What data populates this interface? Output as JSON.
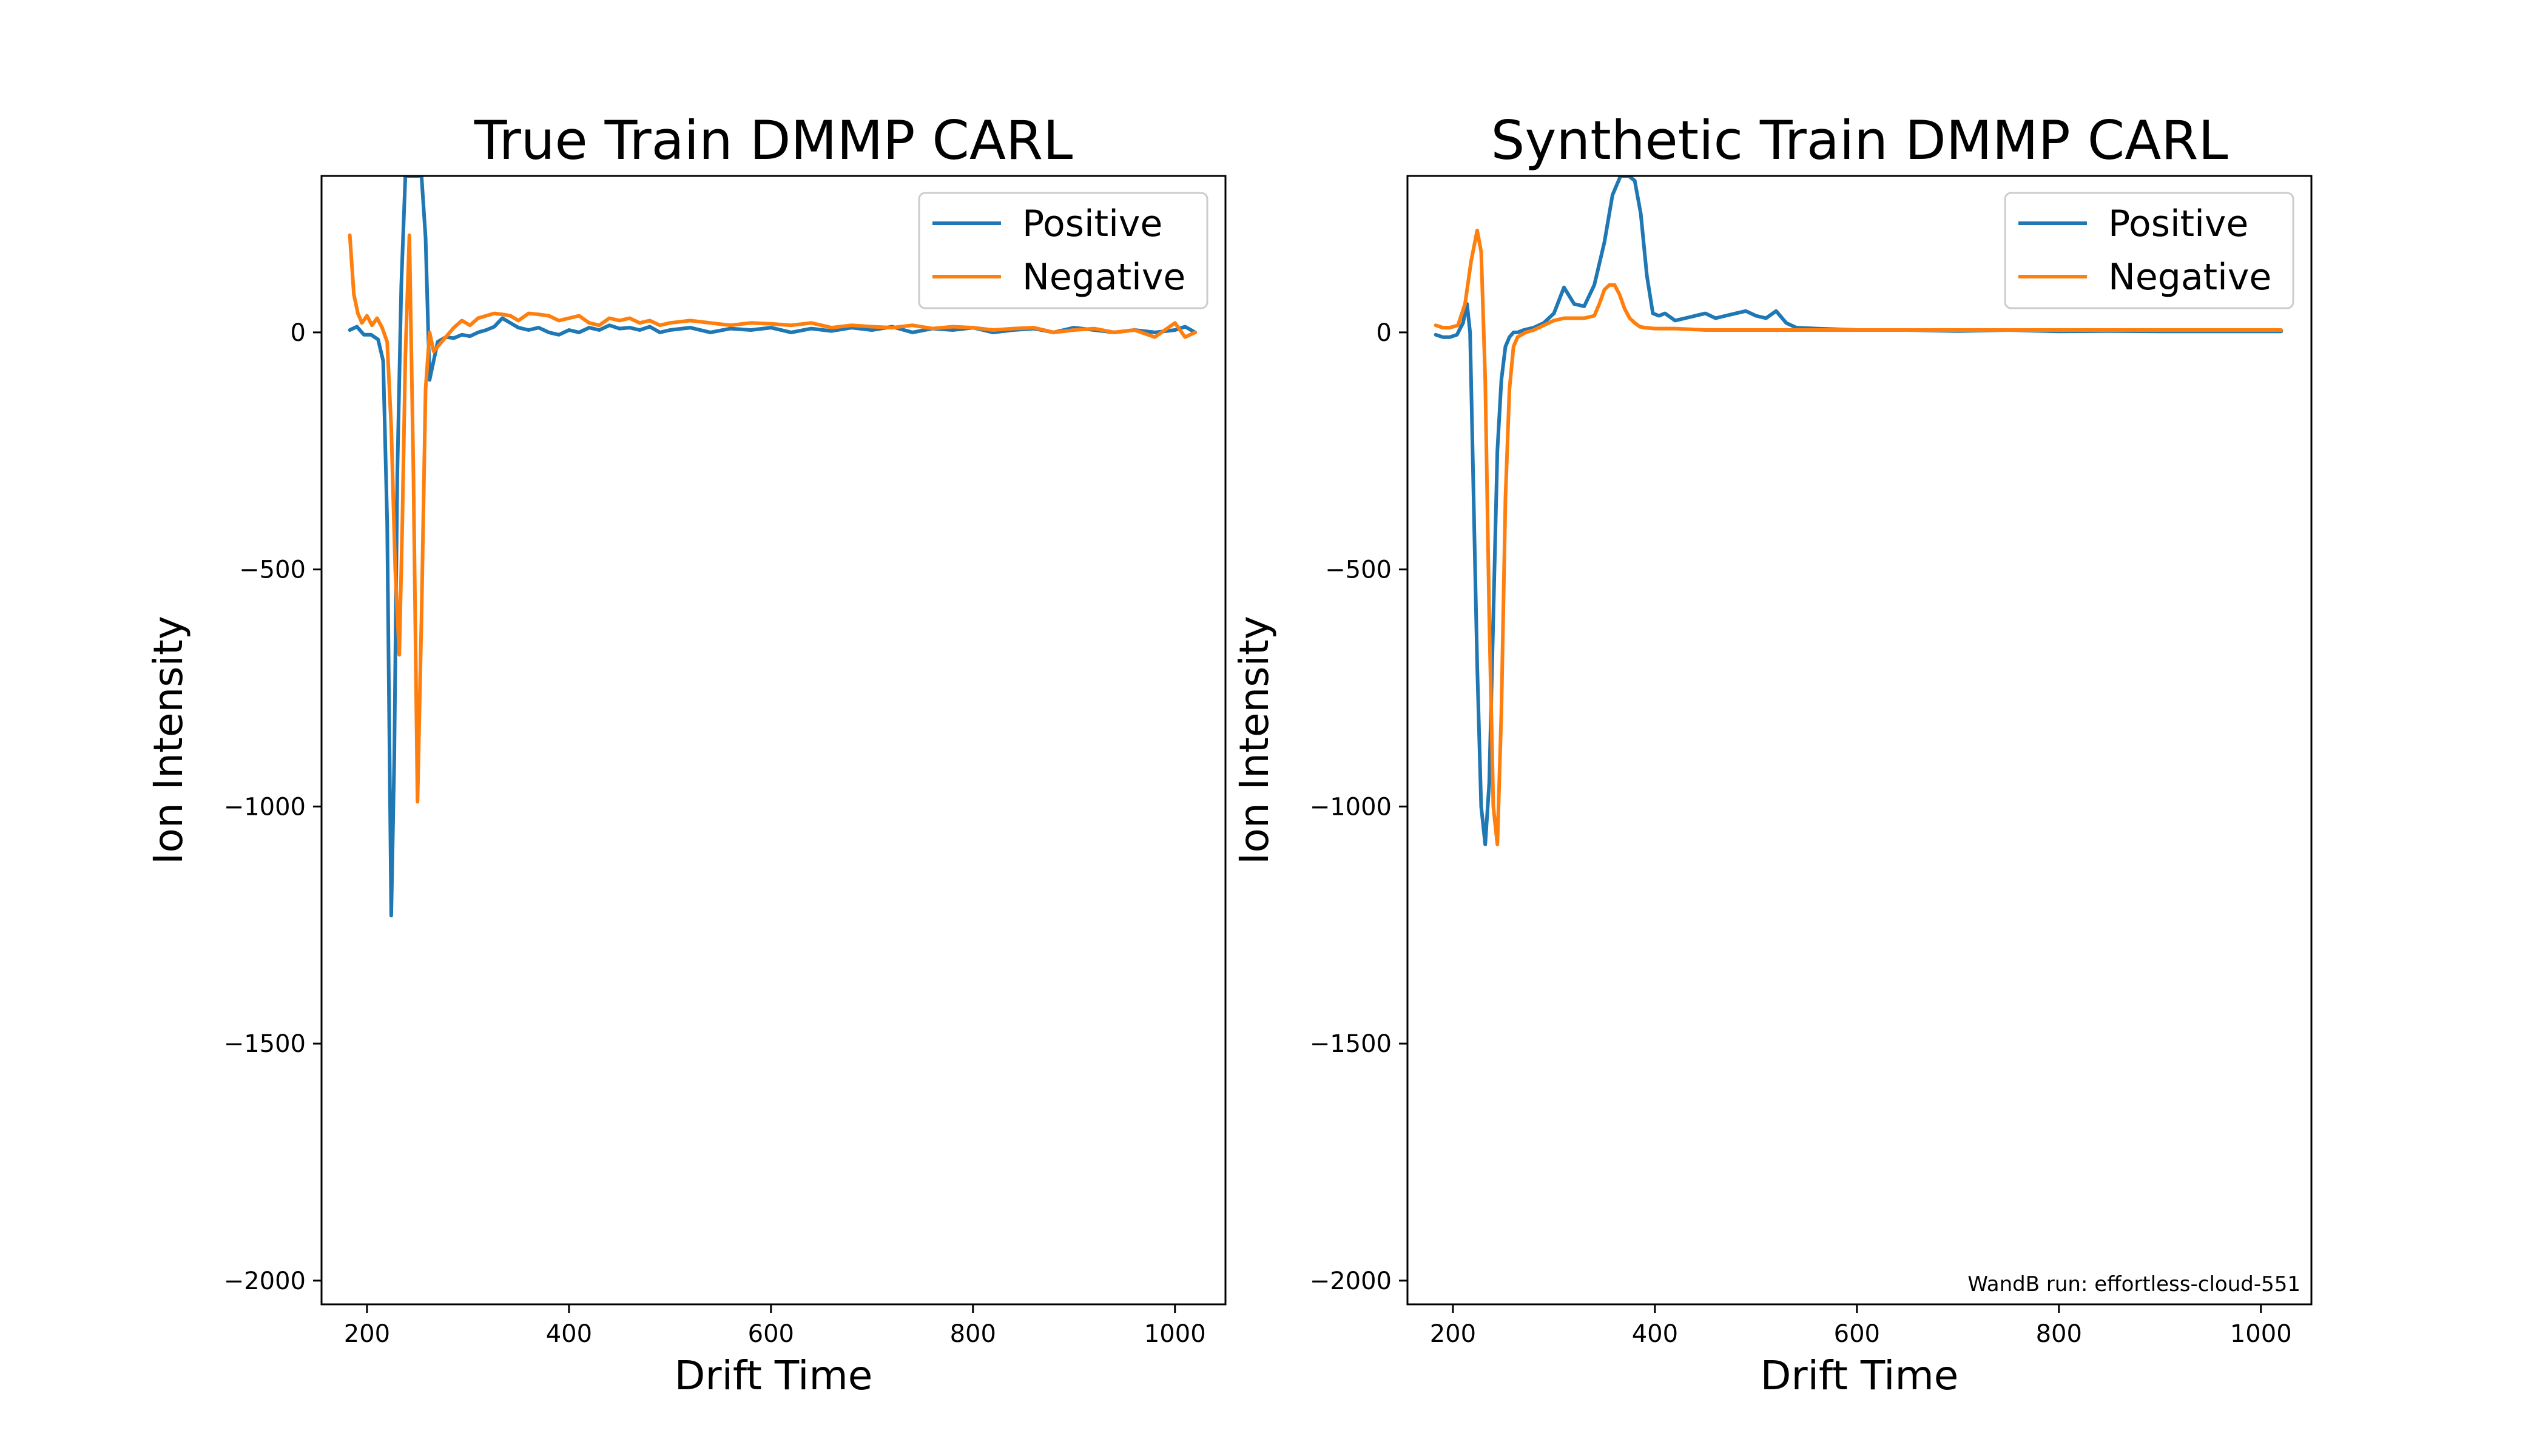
{
  "chart_data": [
    {
      "type": "line",
      "title": "True Train DMMP CARL",
      "xlabel": "Drift Time",
      "ylabel": "Ion Intensity",
      "xlim": [
        155,
        1050
      ],
      "ylim": [
        -2050,
        330
      ],
      "xticks": [
        200,
        400,
        600,
        800,
        1000
      ],
      "yticks": [
        0,
        -500,
        -1000,
        -1500,
        -2000
      ],
      "xtick_labels": [
        "200",
        "400",
        "600",
        "800",
        "1000"
      ],
      "ytick_labels": [
        "0",
        "−500",
        "−1000",
        "−1500",
        "−2000"
      ],
      "grid": false,
      "legend": "top-right",
      "annotation": "",
      "series": [
        {
          "name": "Positive",
          "color": "#1f77b4",
          "x": [
            183,
            190,
            197,
            204,
            211,
            216,
            220,
            224,
            227,
            230,
            234,
            238,
            242,
            246,
            250,
            254,
            258,
            262,
            266,
            270,
            278,
            286,
            294,
            302,
            310,
            318,
            326,
            334,
            342,
            350,
            360,
            370,
            380,
            390,
            400,
            410,
            420,
            430,
            440,
            450,
            460,
            470,
            480,
            490,
            500,
            520,
            540,
            560,
            580,
            600,
            620,
            640,
            660,
            680,
            700,
            720,
            740,
            760,
            780,
            800,
            820,
            840,
            860,
            880,
            900,
            920,
            940,
            960,
            980,
            1000,
            1010,
            1020
          ],
          "y": [
            5,
            12,
            -5,
            -5,
            -15,
            -60,
            -400,
            -1230,
            -900,
            -300,
            100,
            330,
            330,
            330,
            330,
            330,
            200,
            -100,
            -60,
            -20,
            -10,
            -12,
            -5,
            -8,
            0,
            5,
            12,
            30,
            20,
            10,
            5,
            10,
            0,
            -5,
            5,
            0,
            10,
            5,
            15,
            8,
            10,
            5,
            12,
            0,
            5,
            10,
            0,
            8,
            5,
            10,
            0,
            8,
            3,
            10,
            5,
            12,
            0,
            8,
            5,
            10,
            0,
            5,
            8,
            0,
            10,
            5,
            0,
            5,
            0,
            5,
            12,
            0
          ]
        },
        {
          "name": "Negative",
          "color": "#ff7f0e",
          "x": [
            183,
            187,
            191,
            195,
            200,
            205,
            210,
            215,
            220,
            224,
            228,
            232,
            235,
            238,
            242,
            246,
            250,
            254,
            258,
            262,
            266,
            272,
            278,
            286,
            294,
            302,
            310,
            318,
            326,
            334,
            342,
            350,
            360,
            370,
            380,
            390,
            400,
            410,
            420,
            430,
            440,
            450,
            460,
            470,
            480,
            490,
            500,
            520,
            540,
            560,
            580,
            600,
            620,
            640,
            660,
            680,
            700,
            720,
            740,
            760,
            780,
            800,
            820,
            840,
            860,
            880,
            900,
            920,
            940,
            960,
            980,
            1000,
            1010,
            1020
          ],
          "y": [
            205,
            80,
            40,
            20,
            35,
            15,
            30,
            10,
            -20,
            -200,
            -500,
            -680,
            -400,
            -50,
            205,
            -300,
            -990,
            -600,
            -120,
            0,
            -40,
            -25,
            -10,
            10,
            25,
            15,
            30,
            35,
            40,
            38,
            35,
            25,
            40,
            38,
            35,
            25,
            30,
            35,
            20,
            15,
            30,
            25,
            30,
            20,
            25,
            15,
            20,
            25,
            20,
            15,
            20,
            18,
            15,
            20,
            10,
            15,
            12,
            10,
            15,
            8,
            12,
            10,
            5,
            8,
            10,
            0,
            5,
            8,
            0,
            5,
            -10,
            20,
            -10,
            0
          ]
        }
      ]
    },
    {
      "type": "line",
      "title": "Synthetic Train DMMP CARL",
      "xlabel": "Drift Time",
      "ylabel": "Ion Intensity",
      "xlim": [
        155,
        1050
      ],
      "ylim": [
        -2050,
        330
      ],
      "xticks": [
        200,
        400,
        600,
        800,
        1000
      ],
      "yticks": [
        0,
        -500,
        -1000,
        -1500,
        -2000
      ],
      "xtick_labels": [
        "200",
        "400",
        "600",
        "800",
        "1000"
      ],
      "ytick_labels": [
        "0",
        "−500",
        "−1000",
        "−1500",
        "−2000"
      ],
      "grid": false,
      "legend": "top-right",
      "annotation": "WandB run: effortless-cloud-551",
      "series": [
        {
          "name": "Positive",
          "color": "#1f77b4",
          "x": [
            183,
            190,
            197,
            204,
            210,
            214,
            217,
            220,
            224,
            228,
            232,
            236,
            240,
            244,
            248,
            252,
            256,
            260,
            264,
            270,
            280,
            290,
            300,
            310,
            320,
            330,
            340,
            350,
            358,
            366,
            374,
            380,
            386,
            392,
            398,
            404,
            410,
            420,
            430,
            440,
            450,
            460,
            470,
            480,
            490,
            500,
            510,
            520,
            530,
            540,
            560,
            600,
            650,
            700,
            750,
            800,
            850,
            900,
            950,
            1000,
            1020
          ],
          "y": [
            -5,
            -10,
            -10,
            -5,
            20,
            60,
            0,
            -300,
            -700,
            -1000,
            -1080,
            -950,
            -600,
            -250,
            -100,
            -30,
            -10,
            0,
            0,
            5,
            10,
            20,
            40,
            95,
            60,
            55,
            100,
            190,
            290,
            330,
            330,
            320,
            250,
            120,
            40,
            35,
            40,
            25,
            30,
            35,
            40,
            30,
            35,
            40,
            45,
            35,
            30,
            45,
            20,
            10,
            8,
            5,
            5,
            3,
            5,
            2,
            3,
            2,
            2,
            2,
            2
          ]
        },
        {
          "name": "Negative",
          "color": "#ff7f0e",
          "x": [
            183,
            190,
            197,
            205,
            212,
            218,
            224,
            228,
            232,
            236,
            240,
            244,
            248,
            252,
            256,
            260,
            264,
            268,
            272,
            280,
            290,
            300,
            310,
            320,
            330,
            340,
            345,
            350,
            355,
            360,
            365,
            370,
            375,
            380,
            385,
            390,
            400,
            420,
            450,
            500,
            550,
            600,
            650,
            700,
            750,
            800,
            850,
            900,
            950,
            1000,
            1020
          ],
          "y": [
            15,
            10,
            10,
            15,
            60,
            150,
            215,
            170,
            -100,
            -600,
            -1000,
            -1080,
            -800,
            -350,
            -120,
            -30,
            -10,
            -5,
            0,
            5,
            15,
            25,
            30,
            30,
            30,
            35,
            60,
            90,
            100,
            100,
            80,
            50,
            30,
            20,
            12,
            10,
            8,
            8,
            5,
            5,
            5,
            5,
            5,
            5,
            5,
            5,
            5,
            5,
            5,
            5,
            5
          ]
        }
      ]
    }
  ]
}
